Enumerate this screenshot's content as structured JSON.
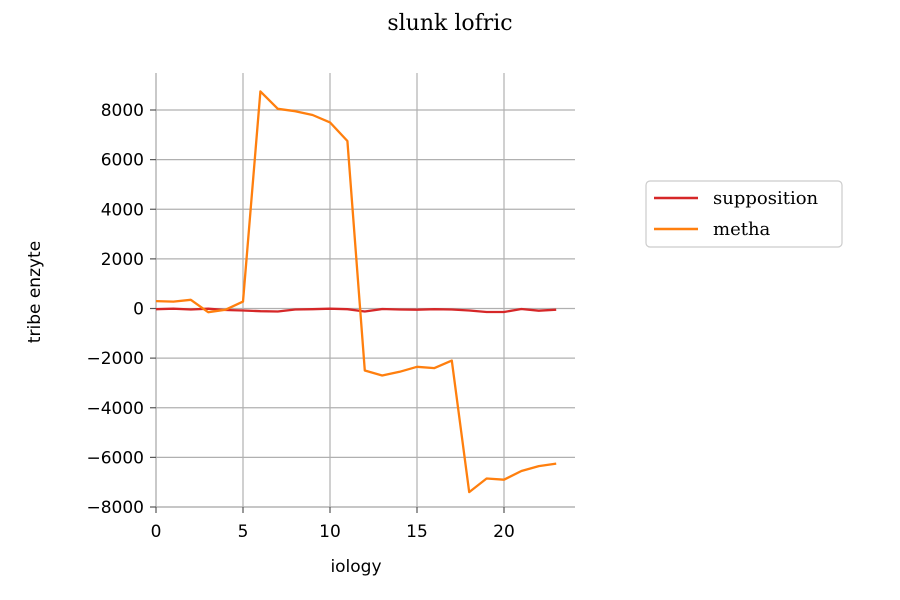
{
  "chart_data": {
    "type": "line",
    "title": "slunk lofric",
    "xlabel": "iology",
    "ylabel": "tribe enzyte",
    "xlim": [
      -0.6,
      24.1
    ],
    "ylim": [
      -8000,
      9500
    ],
    "xticks": [
      0,
      5,
      10,
      15,
      20
    ],
    "yticks": [
      -8000,
      -6000,
      -4000,
      -2000,
      0,
      2000,
      4000,
      6000,
      8000
    ],
    "xtick_labels": [
      "0",
      "5",
      "10",
      "15",
      "20"
    ],
    "ytick_labels": [
      "−8000",
      "−6000",
      "−4000",
      "−2000",
      "0",
      "2000",
      "4000",
      "6000",
      "8000"
    ],
    "grid": true,
    "legend_position": "right",
    "x": [
      0,
      1,
      2,
      3,
      4,
      5,
      6,
      7,
      8,
      9,
      10,
      11,
      12,
      13,
      14,
      15,
      16,
      17,
      18,
      19,
      20,
      21,
      22,
      23
    ],
    "series": [
      {
        "name": "supposition",
        "color": "#d62728",
        "values": [
          -30,
          -10,
          -40,
          -10,
          -60,
          -80,
          -110,
          -120,
          -40,
          -30,
          -10,
          -30,
          -120,
          -20,
          -40,
          -50,
          -30,
          -40,
          -80,
          -140,
          -140,
          -20,
          -90,
          -50
        ]
      },
      {
        "name": "metha",
        "color": "#ff7f0e",
        "values": [
          300,
          280,
          350,
          -150,
          -50,
          280,
          8750,
          8050,
          7950,
          7800,
          7500,
          6750,
          -2500,
          -2700,
          -2550,
          -2350,
          -2400,
          -2100,
          -7400,
          -6850,
          -6900,
          -6550,
          -6350,
          -6250
        ]
      }
    ]
  }
}
